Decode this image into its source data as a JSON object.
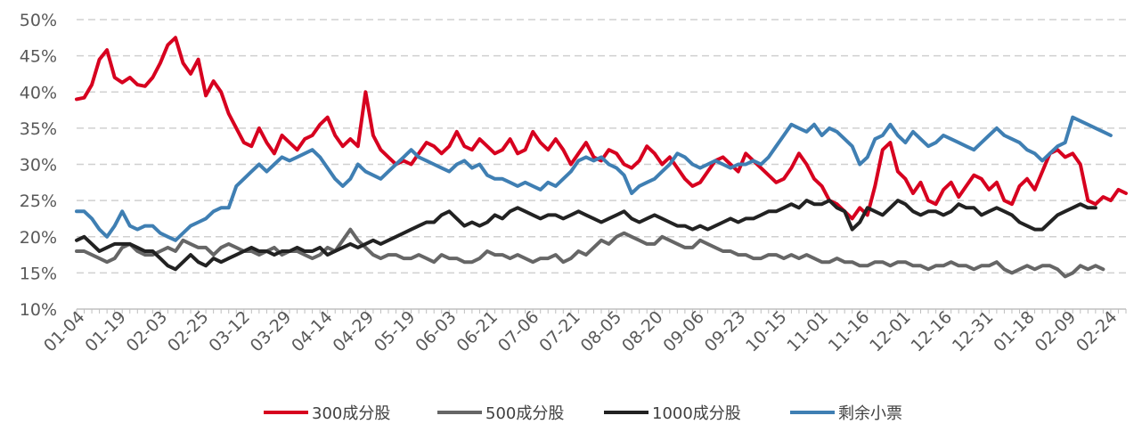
{
  "chart_data": {
    "type": "line",
    "title": "",
    "xlabel": "",
    "ylabel": "",
    "ylim": [
      10,
      50
    ],
    "yticks": [
      10,
      15,
      20,
      25,
      30,
      35,
      40,
      45,
      50
    ],
    "ytick_labels": [
      "10%",
      "15%",
      "20%",
      "25%",
      "30%",
      "35%",
      "40%",
      "45%",
      "50%"
    ],
    "grid": "horizontal-dashed",
    "legend_position": "bottom",
    "x_labels": [
      "01-04",
      "01-19",
      "02-03",
      "02-25",
      "03-12",
      "03-29",
      "04-14",
      "04-29",
      "05-19",
      "06-03",
      "06-21",
      "07-06",
      "07-21",
      "08-05",
      "08-20",
      "09-06",
      "09-23",
      "10-15",
      "11-01",
      "11-16",
      "12-01",
      "12-16",
      "12-31",
      "01-18",
      "02-09",
      "02-24"
    ],
    "series": [
      {
        "name": "300成分股",
        "color": "#d7001f",
        "values": [
          39,
          39.2,
          41,
          44.5,
          45.8,
          42,
          41.3,
          42,
          41,
          40.8,
          42,
          44,
          46.5,
          47.5,
          44,
          42.5,
          44.5,
          39.5,
          41.5,
          40,
          37,
          35,
          33,
          32.5,
          35,
          33,
          31.5,
          34,
          33,
          32,
          33.5,
          34,
          35.5,
          36.5,
          34,
          32.5,
          33.5,
          32.5,
          40,
          34,
          32,
          31,
          30,
          30.5,
          30,
          31.5,
          33,
          32.5,
          31.5,
          32.5,
          34.5,
          32.5,
          32,
          33.5,
          32.5,
          31.5,
          32,
          33.5,
          31.5,
          32,
          34.5,
          33,
          32,
          33.5,
          32,
          30,
          31.5,
          33,
          31,
          30.5,
          32,
          31.5,
          30,
          29.5,
          30.5,
          32.5,
          31.5,
          30,
          31,
          29.5,
          28,
          27,
          27.5,
          29,
          30.5,
          31,
          30,
          29,
          31.5,
          30.5,
          29.5,
          28.5,
          27.5,
          28,
          29.5,
          31.5,
          30,
          28,
          27,
          25,
          24.5,
          23.5,
          22.5,
          24,
          23,
          27,
          32,
          33,
          29,
          28,
          26,
          27.5,
          25,
          24.5,
          26.5,
          27.5,
          25.5,
          27,
          28.5,
          28,
          26.5,
          27.5,
          25,
          24.5,
          27,
          28,
          26.5,
          29,
          31.5,
          32,
          31,
          31.5,
          30,
          25,
          24.5,
          25.5,
          25,
          26.5,
          26
        ]
      },
      {
        "name": "500成分股",
        "color": "#666666",
        "values": [
          18,
          18,
          17.5,
          17,
          16.5,
          17,
          18.5,
          19,
          18,
          17.5,
          17.5,
          18,
          18.5,
          18,
          19.5,
          19,
          18.5,
          18.5,
          17.5,
          18.5,
          19,
          18.5,
          18,
          18,
          17.5,
          18,
          18.5,
          17.5,
          18,
          18,
          17.5,
          17,
          17.5,
          18.5,
          18,
          19.5,
          21,
          19.5,
          18.5,
          17.5,
          17,
          17.5,
          17.5,
          17,
          17,
          17.5,
          17,
          16.5,
          17.5,
          17,
          17,
          16.5,
          16.5,
          17,
          18,
          17.5,
          17.5,
          17,
          17.5,
          17,
          16.5,
          17,
          17,
          17.5,
          16.5,
          17,
          18,
          17.5,
          18.5,
          19.5,
          19,
          20,
          20.5,
          20,
          19.5,
          19,
          19,
          20,
          19.5,
          19,
          18.5,
          18.5,
          19.5,
          19,
          18.5,
          18,
          18,
          17.5,
          17.5,
          17,
          17,
          17.5,
          17.5,
          17,
          17.5,
          17,
          17.5,
          17,
          16.5,
          16.5,
          17,
          16.5,
          16.5,
          16,
          16,
          16.5,
          16.5,
          16,
          16.5,
          16.5,
          16,
          16,
          15.5,
          16,
          16,
          16.5,
          16,
          16,
          15.5,
          16,
          16,
          16.5,
          15.5,
          15,
          15.5,
          16,
          15.5,
          16,
          16,
          15.5,
          14.5,
          15,
          16,
          15.5,
          16,
          15.5
        ]
      },
      {
        "name": "1000成分股",
        "color": "#222222",
        "values": [
          19.5,
          20,
          19,
          18,
          18.5,
          19,
          19,
          19,
          18.5,
          18,
          18,
          17,
          16,
          15.5,
          16.5,
          17.5,
          16.5,
          16,
          17,
          16.5,
          17,
          17.5,
          18,
          18.5,
          18,
          18,
          17.5,
          18,
          18,
          18.5,
          18,
          18,
          18.5,
          17.5,
          18,
          18.5,
          19,
          18.5,
          19,
          19.5,
          19,
          19.5,
          20,
          20.5,
          21,
          21.5,
          22,
          22,
          23,
          23.5,
          22.5,
          21.5,
          22,
          21.5,
          22,
          23,
          22.5,
          23.5,
          24,
          23.5,
          23,
          22.5,
          23,
          23,
          22.5,
          23,
          23.5,
          23,
          22.5,
          22,
          22.5,
          23,
          23.5,
          22.5,
          22,
          22.5,
          23,
          22.5,
          22,
          21.5,
          21.5,
          21,
          21.5,
          21,
          21.5,
          22,
          22.5,
          22,
          22.5,
          22.5,
          23,
          23.5,
          23.5,
          24,
          24.5,
          24,
          25,
          24.5,
          24.5,
          25,
          24,
          23.5,
          21,
          22,
          24,
          23.5,
          23,
          24,
          25,
          24.5,
          23.5,
          23,
          23.5,
          23.5,
          23,
          23.5,
          24.5,
          24,
          24,
          23,
          23.5,
          24,
          23.5,
          23,
          22,
          21.5,
          21,
          21,
          22,
          23,
          23.5,
          24,
          24.5,
          24,
          24
        ]
      },
      {
        "name": "剩余小票",
        "color": "#3f7fb3",
        "values": [
          23.5,
          23.5,
          22.5,
          21,
          20,
          21.5,
          23.5,
          21.5,
          21,
          21.5,
          21.5,
          20.5,
          20,
          19.5,
          20.5,
          21.5,
          22,
          22.5,
          23.5,
          24,
          24,
          27,
          28,
          29,
          30,
          29,
          30,
          31,
          30.5,
          31,
          31.5,
          32,
          31,
          29.5,
          28,
          27,
          28,
          30,
          29,
          28.5,
          28,
          29,
          30,
          31,
          32,
          31,
          30.5,
          30,
          29.5,
          29,
          30,
          30.5,
          29.5,
          30,
          28.5,
          28,
          28,
          27.5,
          27,
          27.5,
          27,
          26.5,
          27.5,
          27,
          28,
          29,
          30.5,
          31,
          30.5,
          31,
          30,
          29.5,
          28.5,
          26,
          27,
          27.5,
          28,
          29,
          30,
          31.5,
          31,
          30,
          29.5,
          30,
          30.5,
          30,
          29.5,
          30,
          30,
          30.5,
          30,
          31,
          32.5,
          34,
          35.5,
          35,
          34.5,
          35.5,
          34,
          35,
          34.5,
          33.5,
          32.5,
          30,
          31,
          33.5,
          34,
          35.5,
          34,
          33,
          34.5,
          33.5,
          32.5,
          33,
          34,
          33.5,
          33,
          32.5,
          32,
          33,
          34,
          35,
          34,
          33.5,
          33,
          32,
          31.5,
          30.5,
          31.5,
          32.5,
          33,
          36.5,
          36,
          35.5,
          35,
          34.5,
          34
        ]
      }
    ]
  }
}
